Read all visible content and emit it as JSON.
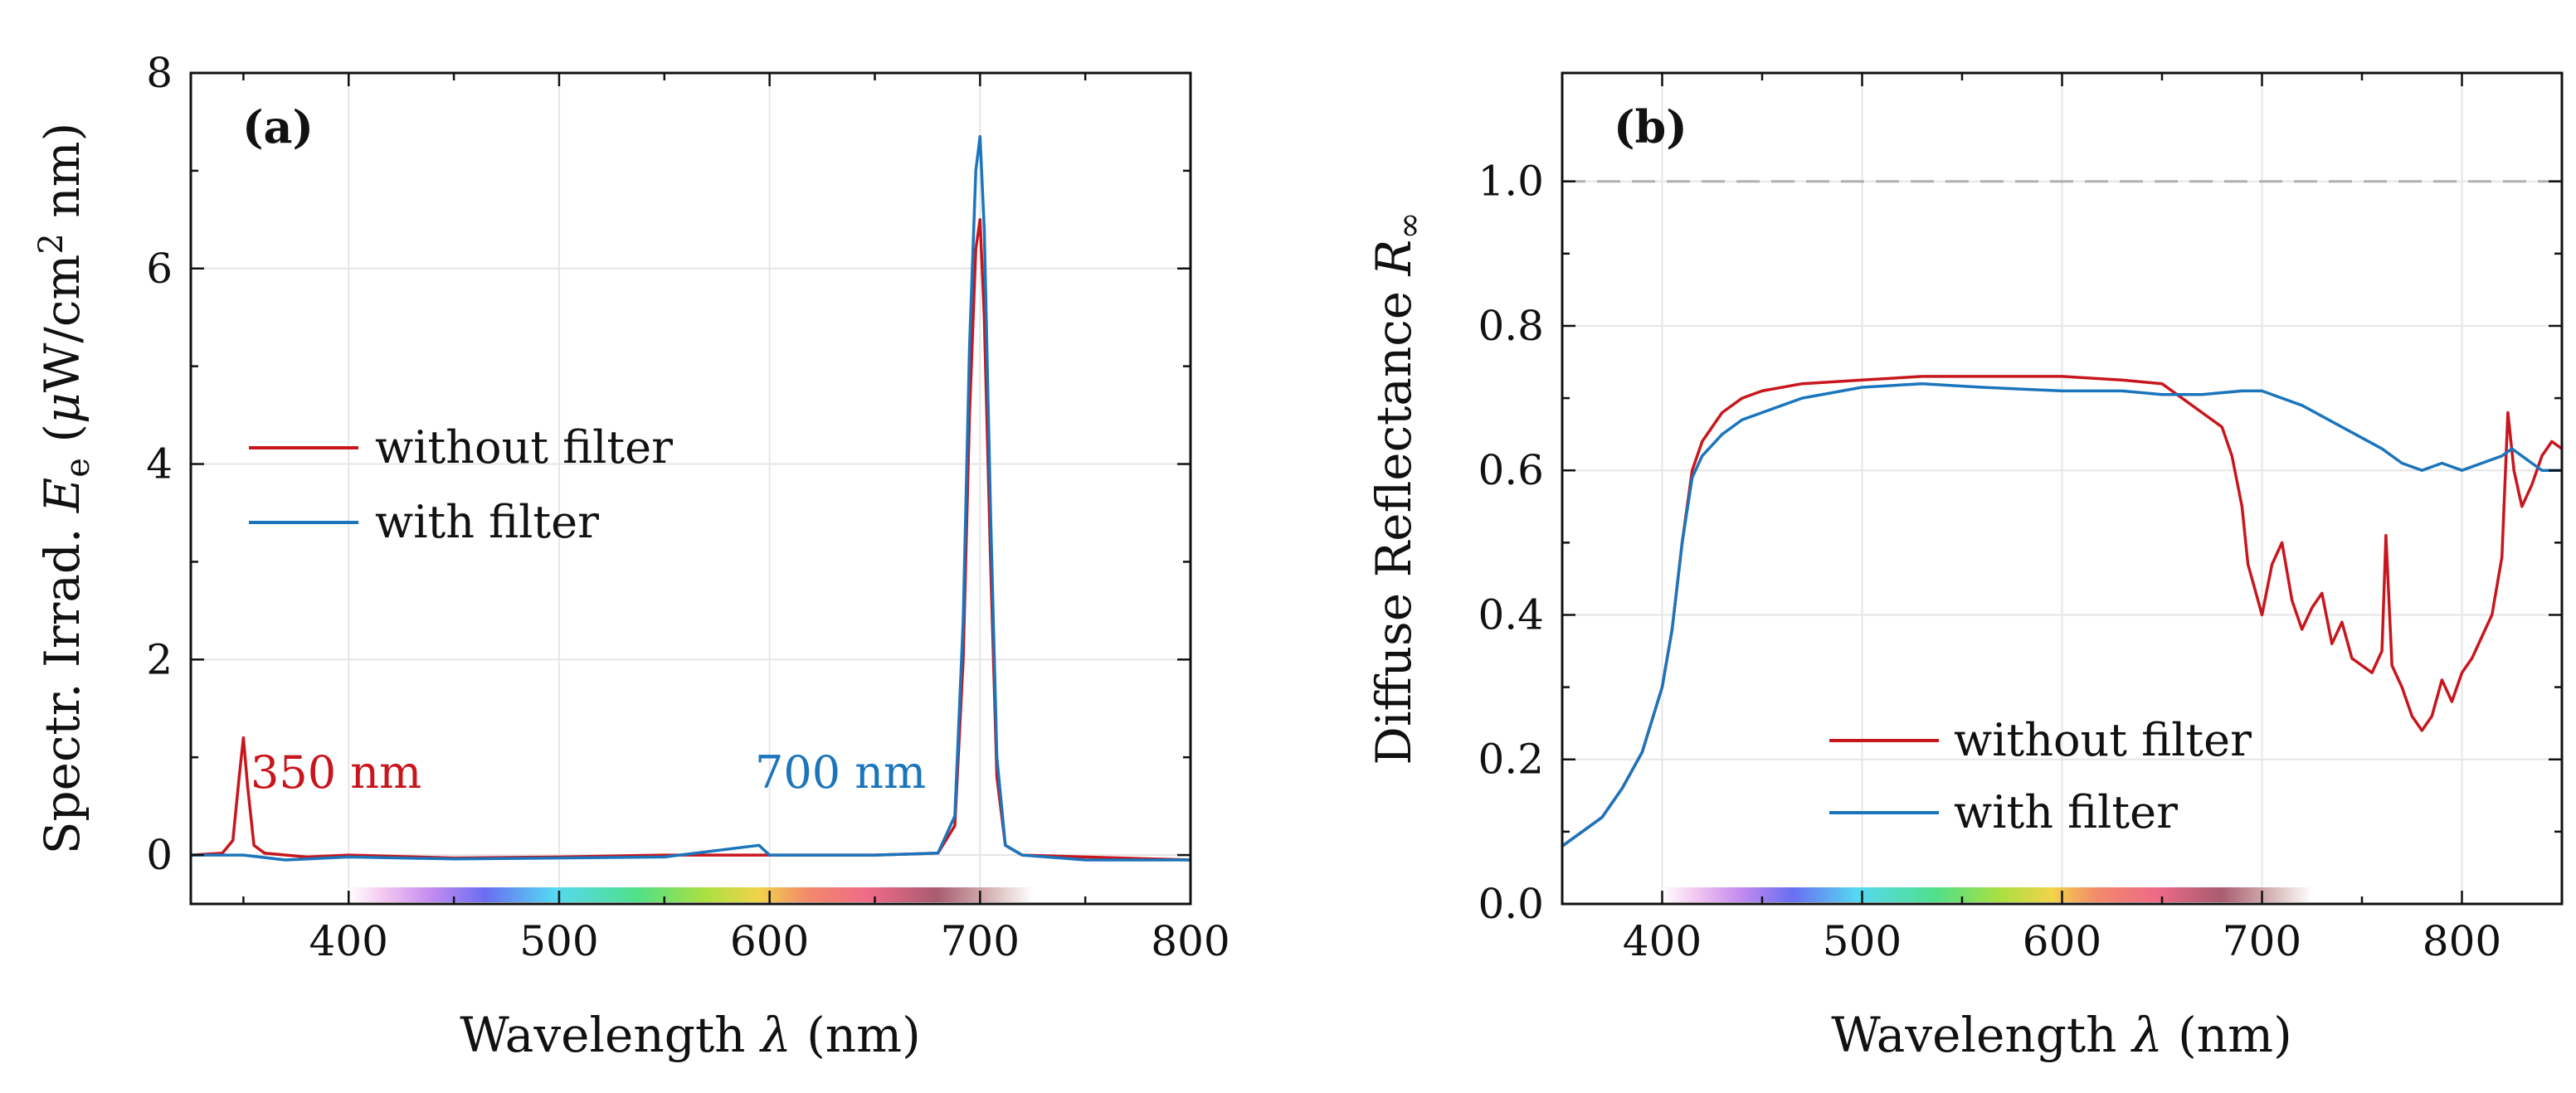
{
  "colors": {
    "without_filter": "#c8161d",
    "with_filter": "#1b75bc",
    "ref_line": "#b0b0b0",
    "grid": "#e6e6e6"
  },
  "chart_data": [
    {
      "type": "line",
      "panel_label": "(a)",
      "xlabel": "Wavelength λ (nm)",
      "ylabel": "Spectr. Irrad. Ee (μW/cm² nm)",
      "xlim": [
        325,
        800
      ],
      "ylim": [
        -0.5,
        8
      ],
      "xticks": [
        400,
        500,
        600,
        700,
        800
      ],
      "xtick_labels": [
        "400",
        "500",
        "600",
        "700",
        "800"
      ],
      "yticks": [
        0,
        2,
        4,
        6,
        8
      ],
      "ytick_labels": [
        "0",
        "2",
        "4",
        "6",
        "8"
      ],
      "grid": true,
      "legend_placement": "center-left",
      "legend": [
        "without filter",
        "with filter"
      ],
      "annotations": [
        {
          "text": "350 nm",
          "x": 360,
          "y": 0.85,
          "series": "without filter"
        },
        {
          "text": "700 nm",
          "x": 595,
          "y": 0.85,
          "series": "with filter"
        }
      ],
      "series": [
        {
          "name": "without filter",
          "x": [
            325,
            340,
            345,
            348,
            350,
            352,
            355,
            360,
            380,
            400,
            450,
            500,
            550,
            600,
            650,
            680,
            688,
            692,
            695,
            698,
            700,
            702,
            705,
            708,
            712,
            720,
            750,
            800
          ],
          "y": [
            0,
            0.02,
            0.15,
            0.8,
            1.2,
            0.7,
            0.1,
            0.02,
            -0.02,
            0,
            -0.03,
            -0.02,
            0,
            0,
            0,
            0.02,
            0.3,
            2.0,
            4.5,
            6.2,
            6.5,
            5.5,
            3.0,
            0.8,
            0.1,
            0,
            -0.02,
            -0.05
          ]
        },
        {
          "name": "with filter",
          "x": [
            325,
            350,
            370,
            400,
            450,
            500,
            550,
            595,
            600,
            650,
            680,
            688,
            692,
            695,
            698,
            700,
            702,
            705,
            708,
            712,
            720,
            750,
            800
          ],
          "y": [
            0,
            0,
            -0.05,
            -0.02,
            -0.04,
            -0.03,
            -0.02,
            0.1,
            0,
            0,
            0.02,
            0.4,
            2.4,
            5.2,
            7.0,
            7.35,
            6.4,
            3.5,
            1.0,
            0.1,
            0,
            -0.05,
            -0.05
          ]
        }
      ]
    },
    {
      "type": "line",
      "panel_label": "(b)",
      "xlabel": "Wavelength λ (nm)",
      "ylabel": "Diffuse Reflectance R∞",
      "xlim": [
        350,
        850
      ],
      "ylim": [
        0,
        1.15
      ],
      "xticks": [
        400,
        500,
        600,
        700,
        800
      ],
      "xtick_labels": [
        "400",
        "500",
        "600",
        "700",
        "800"
      ],
      "yticks": [
        0.0,
        0.2,
        0.4,
        0.6,
        0.8,
        1.0
      ],
      "ytick_labels": [
        "0.0",
        "0.2",
        "0.4",
        "0.6",
        "0.8",
        "1.0"
      ],
      "reference_line_y": 1.0,
      "grid": true,
      "legend_placement": "bottom-center",
      "legend": [
        "without filter",
        "with filter"
      ],
      "series": [
        {
          "name": "without filter",
          "x": [
            350,
            360,
            370,
            380,
            390,
            400,
            405,
            410,
            415,
            420,
            430,
            440,
            450,
            470,
            500,
            530,
            560,
            600,
            630,
            650,
            660,
            670,
            680,
            685,
            690,
            693,
            697,
            700,
            705,
            710,
            715,
            720,
            725,
            730,
            735,
            740,
            745,
            750,
            755,
            760,
            762,
            765,
            770,
            775,
            780,
            785,
            790,
            795,
            800,
            805,
            810,
            815,
            820,
            823,
            826,
            830,
            835,
            840,
            845,
            850
          ],
          "y": [
            0.08,
            0.1,
            0.12,
            0.16,
            0.21,
            0.3,
            0.38,
            0.5,
            0.6,
            0.64,
            0.68,
            0.7,
            0.71,
            0.72,
            0.725,
            0.73,
            0.73,
            0.73,
            0.725,
            0.72,
            0.7,
            0.68,
            0.66,
            0.62,
            0.55,
            0.47,
            0.43,
            0.4,
            0.47,
            0.5,
            0.42,
            0.38,
            0.41,
            0.43,
            0.36,
            0.39,
            0.34,
            0.33,
            0.32,
            0.35,
            0.51,
            0.33,
            0.3,
            0.26,
            0.24,
            0.26,
            0.31,
            0.28,
            0.32,
            0.34,
            0.37,
            0.4,
            0.48,
            0.68,
            0.6,
            0.55,
            0.58,
            0.62,
            0.64,
            0.63
          ]
        },
        {
          "name": "with filter",
          "x": [
            350,
            360,
            370,
            380,
            390,
            400,
            405,
            410,
            415,
            420,
            430,
            440,
            450,
            470,
            500,
            530,
            560,
            600,
            630,
            650,
            670,
            690,
            700,
            710,
            720,
            740,
            760,
            770,
            780,
            790,
            800,
            810,
            820,
            825,
            830,
            835,
            840,
            850
          ],
          "y": [
            0.08,
            0.1,
            0.12,
            0.16,
            0.21,
            0.3,
            0.38,
            0.5,
            0.59,
            0.62,
            0.65,
            0.67,
            0.68,
            0.7,
            0.715,
            0.72,
            0.715,
            0.71,
            0.71,
            0.705,
            0.705,
            0.71,
            0.71,
            0.7,
            0.69,
            0.66,
            0.63,
            0.61,
            0.6,
            0.61,
            0.6,
            0.61,
            0.62,
            0.63,
            0.62,
            0.61,
            0.6,
            0.6
          ]
        }
      ]
    }
  ]
}
